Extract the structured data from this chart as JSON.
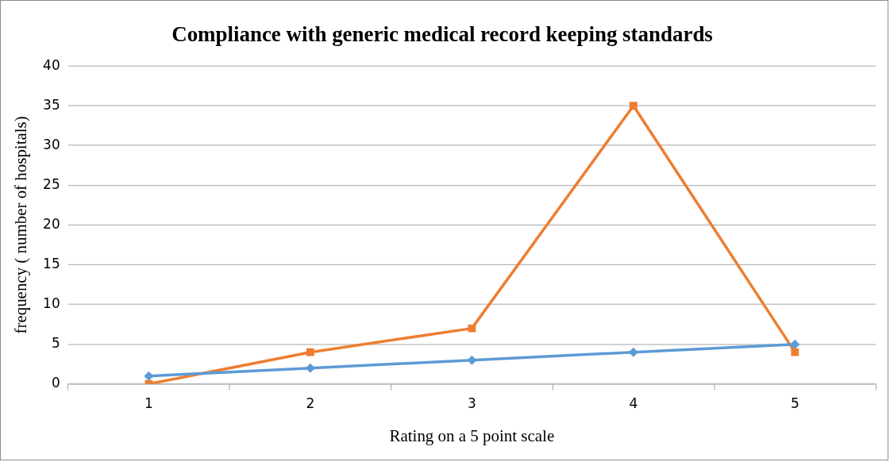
{
  "chart_data": {
    "type": "line",
    "title": "Compliance with generic medical record keeping standards",
    "xlabel": "Rating on a 5 point scale",
    "ylabel": "frequency ( number of hospitals)",
    "categories": [
      "1",
      "2",
      "3",
      "4",
      "5"
    ],
    "series": [
      {
        "color": "#5b9bd5",
        "values": [
          1,
          2,
          3,
          4,
          5
        ],
        "marker": "diamond"
      },
      {
        "color": "#ed7d31",
        "values": [
          0,
          4,
          7,
          35,
          4
        ],
        "marker": "square"
      }
    ],
    "ylim": [
      0,
      40
    ],
    "yticks": [
      0,
      5,
      10,
      15,
      20,
      25,
      30,
      35,
      40
    ],
    "grid": "y",
    "legend": false,
    "line_style": "solid"
  }
}
